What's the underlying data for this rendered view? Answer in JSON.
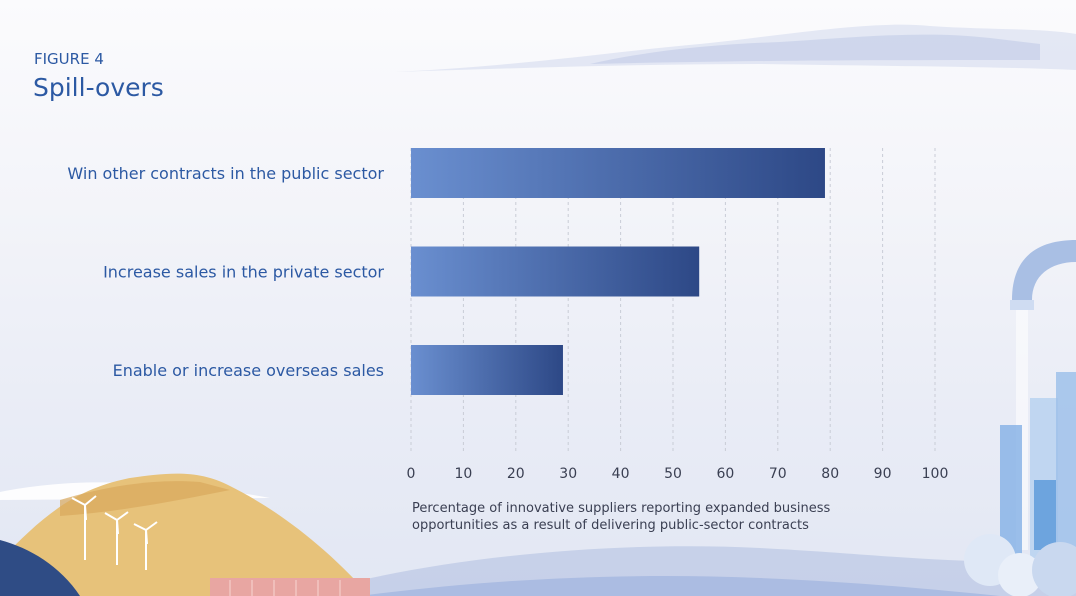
{
  "figure": {
    "label": "FIGURE 4",
    "title": "Spill-overs"
  },
  "chart_data": {
    "type": "bar",
    "orientation": "horizontal",
    "categories": [
      "Win other contracts in the public sector",
      "Increase sales in the private sector",
      "Enable or increase overseas sales"
    ],
    "values": [
      79,
      55,
      29
    ],
    "xlim": [
      0,
      100
    ],
    "xticks": [
      0,
      10,
      20,
      30,
      40,
      50,
      60,
      70,
      80,
      90,
      100
    ],
    "xlabel": "Percentage of innovative suppliers reporting expanded business opportunities as a result of delivering public-sector contracts",
    "ylabel": "",
    "grid": "vertical dashed",
    "colors": {
      "bar_start": "#6a8fd0",
      "bar_end": "#2d4886",
      "label": "#2c59a3",
      "tick": "#3a3f52",
      "grid": "#c9ccd6"
    }
  }
}
